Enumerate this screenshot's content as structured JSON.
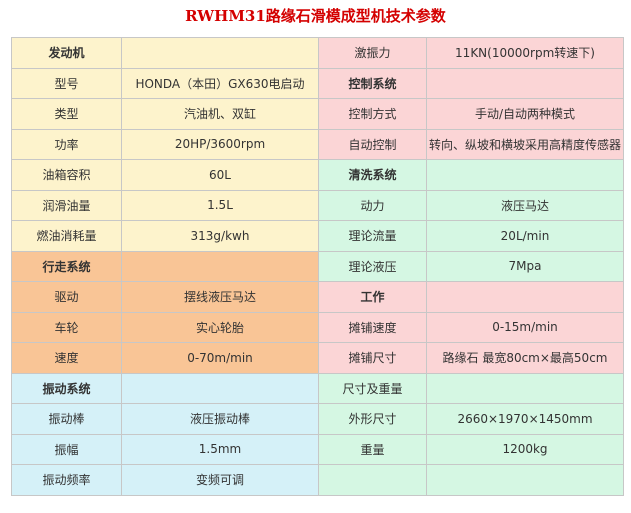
{
  "title": "RWHM31路缘石滑模成型机技术参数",
  "colors": {
    "title": "#d40000",
    "yellow": "#fdf3cc",
    "orange": "#f9c596",
    "blue": "#d5f1f8",
    "pink": "#fbd5d6",
    "green": "#d5f7e3",
    "border": "#c7c7c7"
  },
  "rows": [
    [
      {
        "label": "发动机",
        "value": ""
      },
      {
        "label": "激振力",
        "value": "11KN(10000rpm转速下)"
      }
    ],
    [
      {
        "label": "型号",
        "value": "HONDA（本田）GX630电启动"
      },
      {
        "label": "控制系统",
        "value": ""
      }
    ],
    [
      {
        "label": "类型",
        "value": "汽油机、双缸"
      },
      {
        "label": "控制方式",
        "value": "手动/自动两种模式"
      }
    ],
    [
      {
        "label": "功率",
        "value": "20HP/3600rpm"
      },
      {
        "label": "自动控制",
        "value": "转向、纵坡和横坡采用高精度传感器"
      }
    ],
    [
      {
        "label": "油箱容积",
        "value": "60L"
      },
      {
        "label": "清洗系统",
        "value": ""
      }
    ],
    [
      {
        "label": "润滑油量",
        "value": "1.5L"
      },
      {
        "label": "动力",
        "value": "液压马达"
      }
    ],
    [
      {
        "label": "燃油消耗量",
        "value": "313g/kwh"
      },
      {
        "label": "理论流量",
        "value": "20L/min"
      }
    ],
    [
      {
        "label": "行走系统",
        "value": ""
      },
      {
        "label": "理论液压",
        "value": "7Mpa"
      }
    ],
    [
      {
        "label": "驱动",
        "value": "摆线液压马达"
      },
      {
        "label": "工作",
        "value": ""
      }
    ],
    [
      {
        "label": "车轮",
        "value": "实心轮胎"
      },
      {
        "label": "摊铺速度",
        "value": "0-15m/min"
      }
    ],
    [
      {
        "label": "速度",
        "value": "0-70m/min"
      },
      {
        "label": "摊铺尺寸",
        "value": "路缘石 最宽80cm×最高50cm"
      }
    ],
    [
      {
        "label": "振动系统",
        "value": ""
      },
      {
        "label": "尺寸及重量",
        "value": ""
      }
    ],
    [
      {
        "label": "振动棒",
        "value": "液压振动棒"
      },
      {
        "label": "外形尺寸",
        "value": "2660×1970×1450mm"
      }
    ],
    [
      {
        "label": "振幅",
        "value": "1.5mm"
      },
      {
        "label": "重量",
        "value": "1200kg"
      }
    ],
    [
      {
        "label": "振动频率",
        "value": "变频可调"
      },
      {
        "label": "",
        "value": ""
      }
    ]
  ]
}
